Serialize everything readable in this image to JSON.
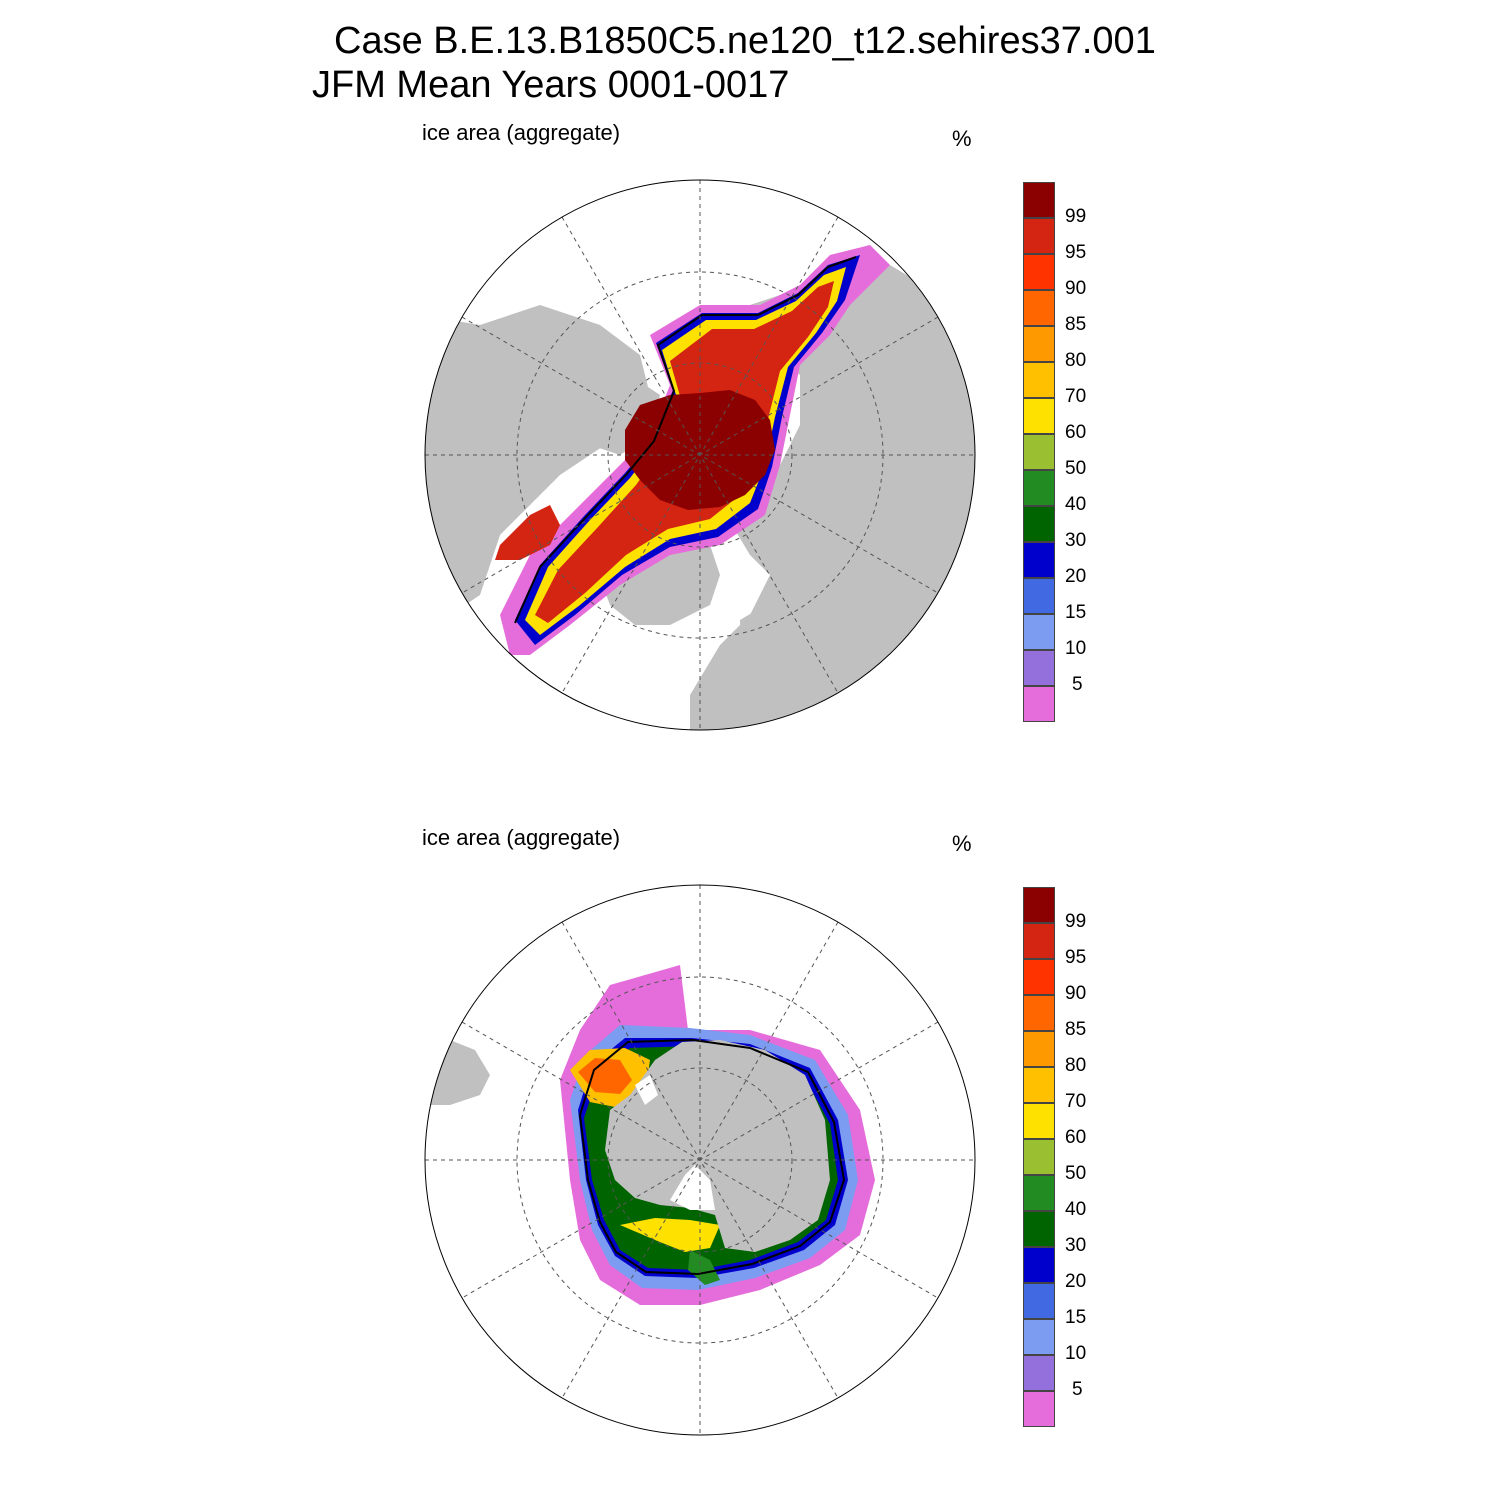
{
  "title": {
    "line1": "Case B.E.13.B1850C5.ne120_t12.sehires37.001",
    "line2": "JFM Mean     Years 0001-0017"
  },
  "panels": [
    {
      "label": "ice area  (aggregate)",
      "units": "%",
      "hemisphere": "north"
    },
    {
      "label": "ice area  (aggregate)",
      "units": "%",
      "hemisphere": "south"
    }
  ],
  "colorbar": {
    "ticks": [
      "99",
      "95",
      "90",
      "85",
      "80",
      "70",
      "60",
      "50",
      "40",
      "30",
      "20",
      "15",
      "10",
      "5"
    ],
    "colors": [
      "#8b0000",
      "#d42412",
      "#ff3300",
      "#ff6600",
      "#ff9900",
      "#ffc000",
      "#ffe100",
      "#9ac031",
      "#228b22",
      "#006400",
      "#0000cd",
      "#4169e1",
      "#7b9cf0",
      "#9370db",
      "#e56ddb"
    ]
  },
  "map_colors": {
    "land": "#c0c0c0",
    "ocean": "#ffffff",
    "grid": "#555555",
    "outline": "#000000"
  }
}
